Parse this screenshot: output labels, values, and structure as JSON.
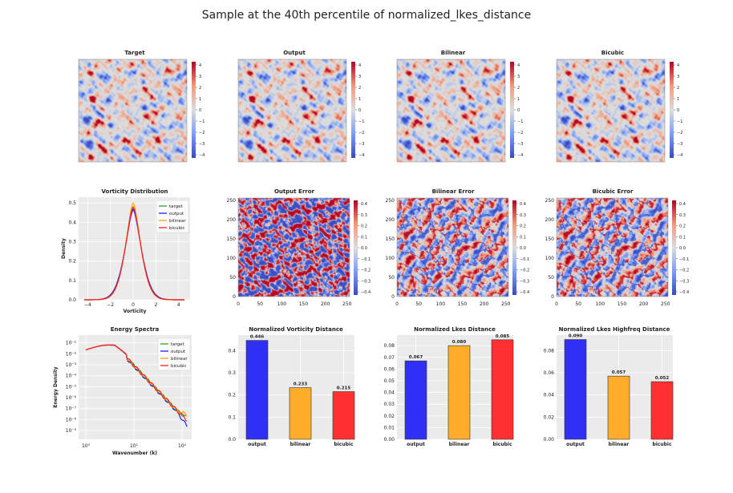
{
  "suptitle": "Sample at the 40th percentile of normalized_lkes_distance",
  "colors": {
    "target": "#2ca02c",
    "output": "#1f1fff",
    "bilinear": "#ffa500",
    "bicubic": "#ff2020",
    "bar_output": "#2f2ff5",
    "bar_bilinear": "#ffad2a",
    "bar_bicubic": "#ff3030",
    "axes_bg": "#ebebeb"
  },
  "fields": [
    {
      "title": "Target",
      "seed": 11
    },
    {
      "title": "Output",
      "seed": 11
    },
    {
      "title": "Bilinear",
      "seed": 11
    },
    {
      "title": "Bicubic",
      "seed": 11
    }
  ],
  "field_colorbar": {
    "ticks": [
      "4",
      "3",
      "2",
      "1",
      "0",
      "−1",
      "−2",
      "−3",
      "−4"
    ]
  },
  "errors": [
    {
      "title": "Output Error",
      "style": "dense"
    },
    {
      "title": "Bilinear Error",
      "style": "sparse"
    },
    {
      "title": "Bicubic Error",
      "style": "sparse"
    }
  ],
  "error_axes": {
    "xticks": [
      "0",
      "50",
      "100",
      "150",
      "200",
      "250"
    ],
    "yticks": [
      "0",
      "50",
      "100",
      "150",
      "200",
      "250"
    ]
  },
  "error_colorbar": {
    "ticks": [
      "0.4",
      "0.3",
      "0.2",
      "0.1",
      "0.0",
      "−0.1",
      "−0.2",
      "−0.3",
      "−0.4"
    ]
  },
  "chart_data": [
    {
      "type": "line",
      "title": "Vorticity Distribution",
      "xlabel": "Vorticity",
      "ylabel": "Density",
      "xlim": [
        -4.8,
        5.0
      ],
      "ylim": [
        0,
        0.53
      ],
      "xticks": [
        "−4",
        "−2",
        "0",
        "2",
        "4"
      ],
      "yticks": [
        "0.0",
        "0.1",
        "0.2",
        "0.3",
        "0.4",
        "0.5"
      ],
      "legend": [
        "target",
        "output",
        "bilinear",
        "bicubic"
      ],
      "series": [
        {
          "name": "target",
          "peak": 0.47,
          "sigma": 0.82
        },
        {
          "name": "output",
          "peak": 0.465,
          "sigma": 0.84
        },
        {
          "name": "bilinear",
          "peak": 0.5,
          "sigma": 0.78
        },
        {
          "name": "bicubic",
          "peak": 0.48,
          "sigma": 0.8
        }
      ]
    },
    {
      "type": "line",
      "title": "Energy Spectra",
      "xlabel": "Wavenumber (k)",
      "ylabel": "Energy Density",
      "xscale": "log",
      "yscale": "log",
      "xticks": [
        "10⁰",
        "10¹",
        "10²"
      ],
      "yticks": [
        "10⁻¹",
        "10⁻²",
        "10⁻³",
        "10⁻⁴",
        "10⁻⁵",
        "10⁻⁶",
        "10⁻⁷",
        "10⁻⁸",
        "10⁻⁹"
      ],
      "legend": [
        "target",
        "output",
        "bilinear",
        "bicubic"
      ]
    },
    {
      "type": "bar",
      "title": "Normalized Vorticity Distance",
      "categories": [
        "output",
        "bilinear",
        "bicubic"
      ],
      "values": [
        0.446,
        0.233,
        0.215
      ],
      "labels": [
        "0.446",
        "0.233",
        "0.215"
      ],
      "ylim": [
        0,
        0.47
      ],
      "yticks": [
        "0.0",
        "0.1",
        "0.2",
        "0.3",
        "0.4"
      ]
    },
    {
      "type": "bar",
      "title": "Normalized Lkes Distance",
      "categories": [
        "output",
        "bilinear",
        "bicubic"
      ],
      "values": [
        0.067,
        0.08,
        0.085
      ],
      "labels": [
        "0.067",
        "0.080",
        "0.085"
      ],
      "ylim": [
        0,
        0.089
      ],
      "yticks": [
        "0.00",
        "0.01",
        "0.02",
        "0.03",
        "0.04",
        "0.05",
        "0.06",
        "0.07",
        "0.08"
      ]
    },
    {
      "type": "bar",
      "title": "Normalized Lkes Highfreq Distance",
      "categories": [
        "output",
        "bilinear",
        "bicubic"
      ],
      "values": [
        0.09,
        0.057,
        0.052
      ],
      "labels": [
        "0.090",
        "0.057",
        "0.052"
      ],
      "ylim": [
        0,
        0.094
      ],
      "yticks": [
        "0.00",
        "0.02",
        "0.04",
        "0.06",
        "0.08"
      ]
    }
  ]
}
